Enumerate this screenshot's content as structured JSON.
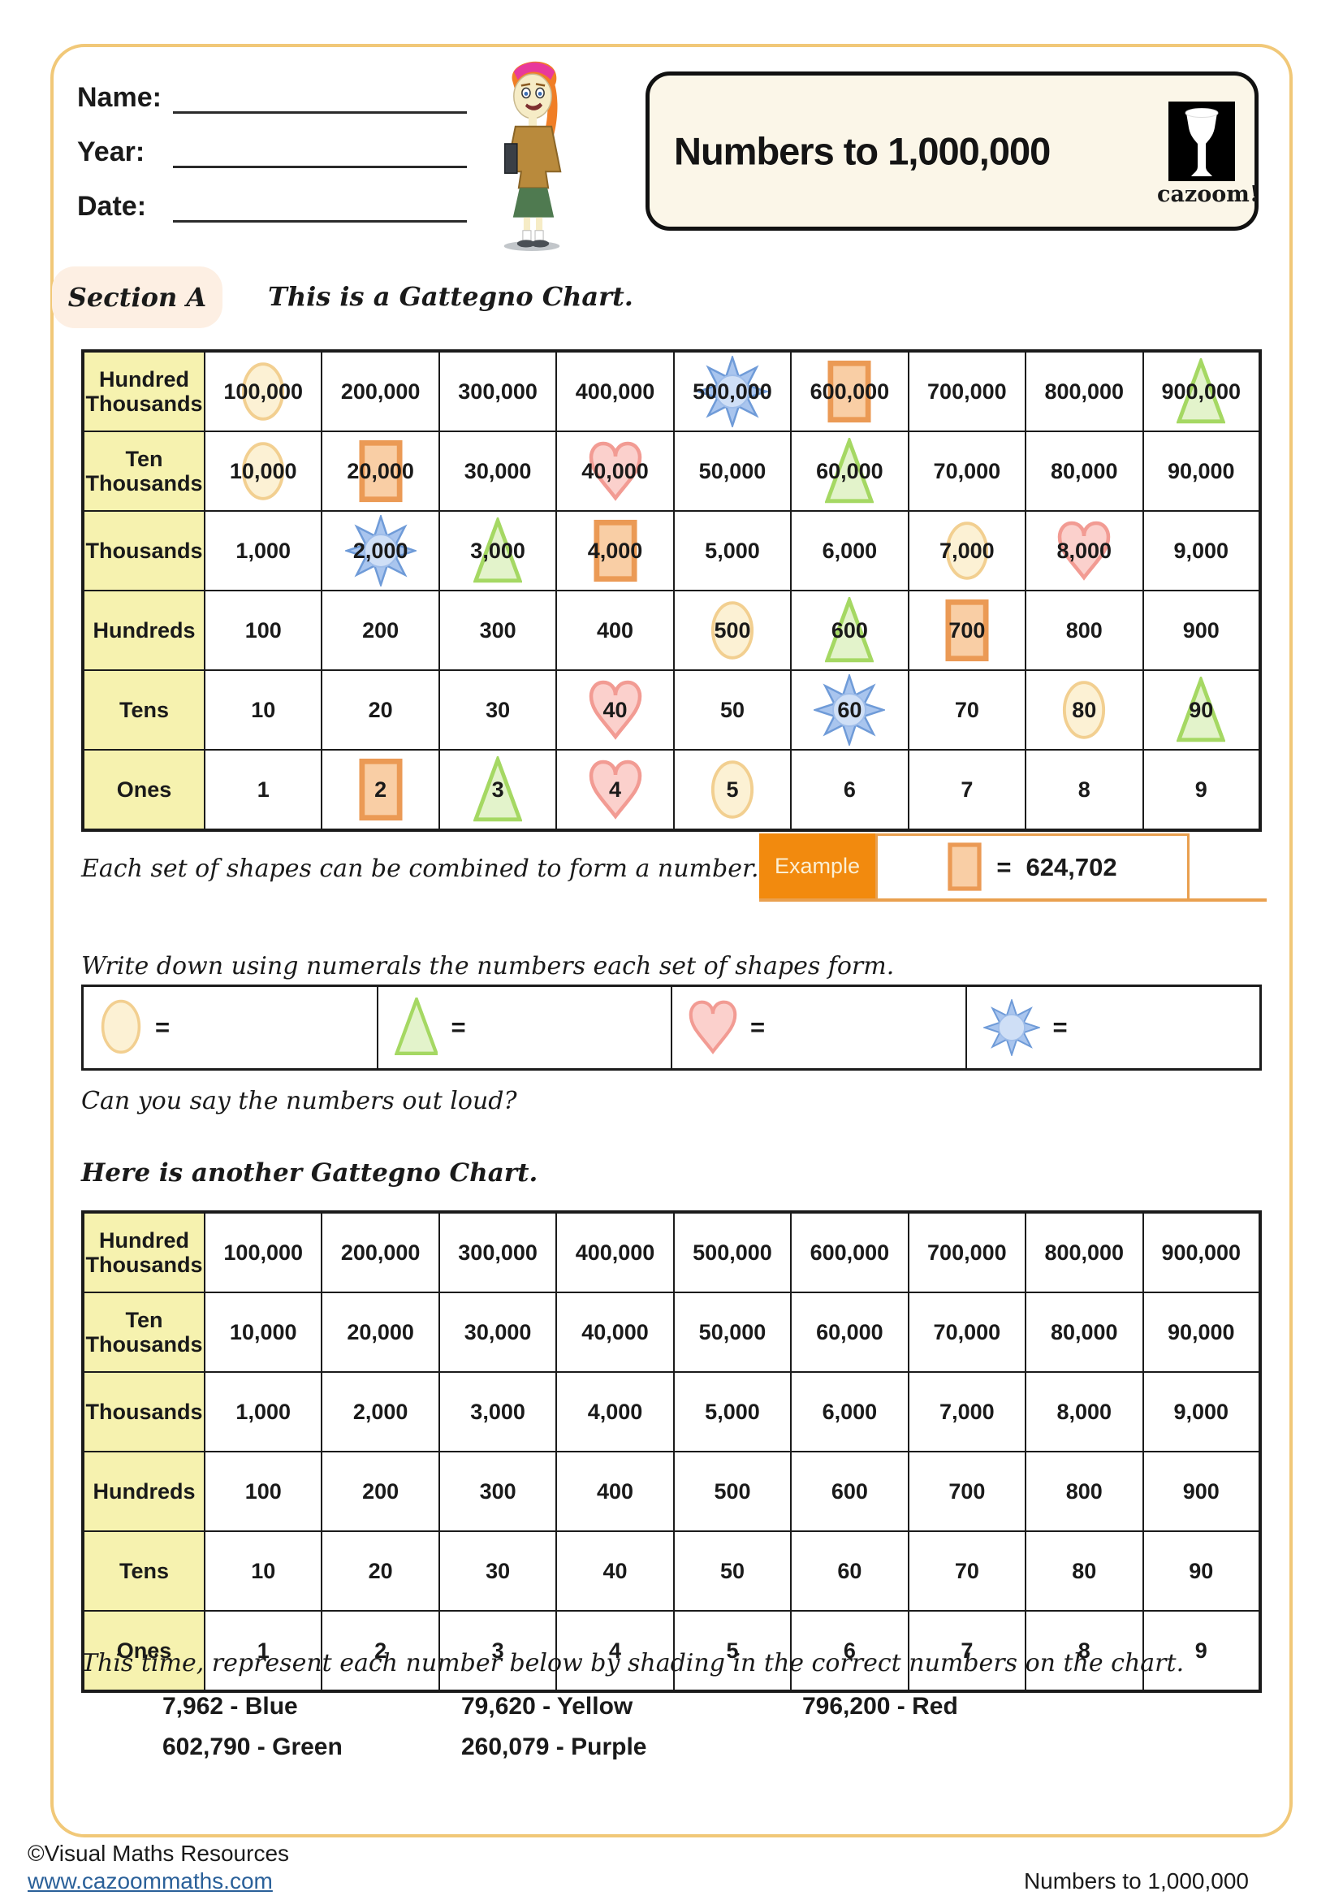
{
  "colors": {
    "page_border": "#F1C878",
    "header_cell_bg": "#F6F2AF",
    "section_badge_bg": "#FDEFE3",
    "example_orange": "#F28A0E",
    "example_border": "#E9A04F",
    "link_blue": "#2A6099",
    "circle_fill": "#FCF1D4",
    "circle_stroke": "#F2CF90",
    "square_fill": "#F9CEA5",
    "square_stroke": "#EB9A55",
    "triangle_fill": "#E3F3CB",
    "triangle_stroke": "#A5D863",
    "heart_fill": "#FBD0CC",
    "heart_stroke": "#F29B93",
    "star_fill": "#A9C5EE",
    "star_stroke": "#6F9BD8",
    "star_center_fill": "#CFDFF6",
    "star_center_stroke": "#9FBDE9"
  },
  "header": {
    "name_label": "Name:",
    "year_label": "Year:",
    "date_label": "Date:",
    "title": "Numbers to 1,000,000",
    "logo_text": "cazoom!"
  },
  "section_a": {
    "badge": "Section A",
    "heading": "This is a Gattegno Chart."
  },
  "chart1": {
    "rows": [
      {
        "header": "Hundred Thousands",
        "cells": [
          "100,000",
          "200,000",
          "300,000",
          "400,000",
          "500,000",
          "600,000",
          "700,000",
          "800,000",
          "900,000"
        ],
        "shapes": {
          "0": "circle",
          "4": "star",
          "5": "square",
          "8": "triangle"
        }
      },
      {
        "header": "Ten Thousands",
        "cells": [
          "10,000",
          "20,000",
          "30,000",
          "40,000",
          "50,000",
          "60,000",
          "70,000",
          "80,000",
          "90,000"
        ],
        "shapes": {
          "0": "circle",
          "1": "square",
          "3": "heart",
          "5": "triangle"
        }
      },
      {
        "header": "Thousands",
        "cells": [
          "1,000",
          "2,000",
          "3,000",
          "4,000",
          "5,000",
          "6,000",
          "7,000",
          "8,000",
          "9,000"
        ],
        "shapes": {
          "1": "star",
          "2": "triangle",
          "3": "square",
          "6": "circle",
          "7": "heart"
        }
      },
      {
        "header": "Hundreds",
        "cells": [
          "100",
          "200",
          "300",
          "400",
          "500",
          "600",
          "700",
          "800",
          "900"
        ],
        "shapes": {
          "4": "circle",
          "5": "triangle",
          "6": "square"
        }
      },
      {
        "header": "Tens",
        "cells": [
          "10",
          "20",
          "30",
          "40",
          "50",
          "60",
          "70",
          "80",
          "90"
        ],
        "shapes": {
          "3": "heart",
          "5": "star",
          "7": "circle",
          "8": "triangle"
        }
      },
      {
        "header": "Ones",
        "cells": [
          "1",
          "2",
          "3",
          "4",
          "5",
          "6",
          "7",
          "8",
          "9"
        ],
        "shapes": {
          "1": "square",
          "2": "triangle",
          "3": "heart",
          "4": "circle"
        }
      }
    ]
  },
  "combine_text": "Each set of shapes can be combined to form a number.",
  "example": {
    "label": "Example",
    "shape": "square",
    "equals": "=",
    "value": "624,702"
  },
  "write_text": "Write down using numerals the numbers each set of shapes form.",
  "answers": {
    "items": [
      {
        "shape": "circle",
        "equals": "="
      },
      {
        "shape": "triangle",
        "equals": "="
      },
      {
        "shape": "heart",
        "equals": "="
      },
      {
        "shape": "star",
        "equals": "="
      }
    ]
  },
  "say_text": "Can you say the numbers out loud?",
  "another_heading": "Here is another Gattegno Chart.",
  "chart2": {
    "rows": [
      {
        "header": "Hundred Thousands",
        "cells": [
          "100,000",
          "200,000",
          "300,000",
          "400,000",
          "500,000",
          "600,000",
          "700,000",
          "800,000",
          "900,000"
        ]
      },
      {
        "header": "Ten Thousands",
        "cells": [
          "10,000",
          "20,000",
          "30,000",
          "40,000",
          "50,000",
          "60,000",
          "70,000",
          "80,000",
          "90,000"
        ]
      },
      {
        "header": "Thousands",
        "cells": [
          "1,000",
          "2,000",
          "3,000",
          "4,000",
          "5,000",
          "6,000",
          "7,000",
          "8,000",
          "9,000"
        ]
      },
      {
        "header": "Hundreds",
        "cells": [
          "100",
          "200",
          "300",
          "400",
          "500",
          "600",
          "700",
          "800",
          "900"
        ]
      },
      {
        "header": "Tens",
        "cells": [
          "10",
          "20",
          "30",
          "40",
          "50",
          "60",
          "70",
          "80",
          "90"
        ]
      },
      {
        "header": "Ones",
        "cells": [
          "1",
          "2",
          "3",
          "4",
          "5",
          "6",
          "7",
          "8",
          "9"
        ]
      }
    ]
  },
  "shade_text": "This time, represent each number below by shading in the correct numbers on the chart.",
  "shade_items": [
    {
      "number": "7,962",
      "color_label": "Blue"
    },
    {
      "number": "79,620",
      "color_label": "Yellow"
    },
    {
      "number": "796,200",
      "color_label": "Red"
    },
    {
      "number": "602,790",
      "color_label": "Green"
    },
    {
      "number": "260,079",
      "color_label": "Purple"
    }
  ],
  "footer": {
    "copyright": "©Visual Maths Resources",
    "link": "www.cazoommaths.com",
    "doc_title": "Numbers to 1,000,000"
  }
}
